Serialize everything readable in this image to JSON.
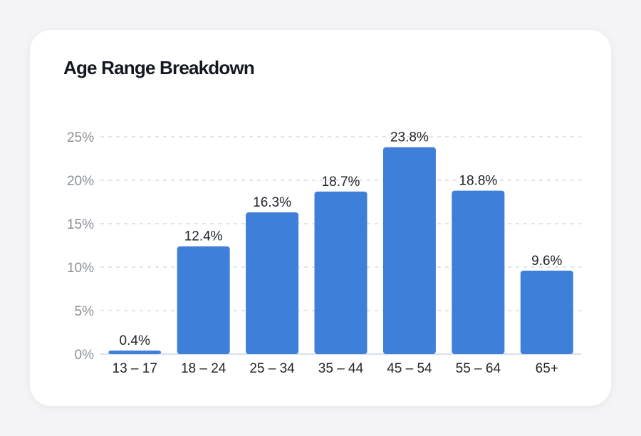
{
  "title": "Age Range Breakdown",
  "colors": {
    "bar": "#3e7fd9",
    "grid": "#d9dbe0",
    "axis": "#c9d6ea"
  },
  "chart_data": {
    "type": "bar",
    "title": "Age Range Breakdown",
    "xlabel": "",
    "ylabel": "",
    "categories": [
      "13 – 17",
      "18 – 24",
      "25 – 34",
      "35 – 44",
      "45 – 54",
      "55 – 64",
      "65+"
    ],
    "values": [
      0.4,
      12.4,
      16.3,
      18.7,
      23.8,
      18.8,
      9.6
    ],
    "data_labels": [
      "0.4%",
      "12.4%",
      "16.3%",
      "18.7%",
      "23.8%",
      "18.8%",
      "9.6%"
    ],
    "ylim": [
      0,
      25
    ],
    "yticks": [
      0,
      5,
      10,
      15,
      20,
      25
    ],
    "ytick_labels": [
      "0%",
      "5%",
      "10%",
      "15%",
      "20%",
      "25%"
    ],
    "grid": true,
    "legend": "none"
  }
}
